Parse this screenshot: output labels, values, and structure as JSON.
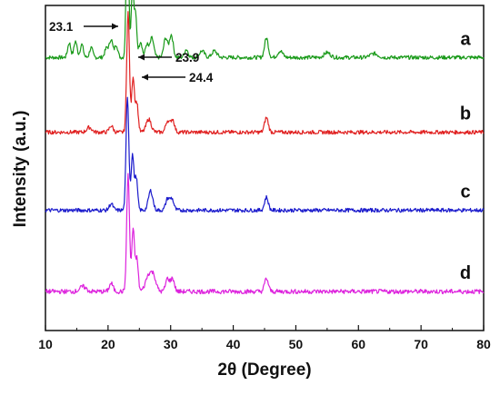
{
  "chart_data": {
    "type": "line",
    "xlabel": "2θ (Degree)",
    "ylabel": "Intensity (a.u.)",
    "xlim": [
      10,
      80
    ],
    "x_ticks": [
      10,
      20,
      30,
      40,
      50,
      60,
      70,
      80
    ],
    "y_tick_labels": "none",
    "grid": false,
    "legend": "none",
    "series": [
      {
        "name": "a",
        "color": "#1a9a1a",
        "baseline": 0.84,
        "noise": 0.006,
        "peaks": [
          {
            "x": 13.8,
            "h": 0.045,
            "w": 0.25
          },
          {
            "x": 14.8,
            "h": 0.05,
            "w": 0.25
          },
          {
            "x": 15.8,
            "h": 0.04,
            "w": 0.25
          },
          {
            "x": 17.3,
            "h": 0.03,
            "w": 0.25
          },
          {
            "x": 19.8,
            "h": 0.03,
            "w": 0.3
          },
          {
            "x": 20.5,
            "h": 0.055,
            "w": 0.25
          },
          {
            "x": 21.3,
            "h": 0.04,
            "w": 0.25
          },
          {
            "x": 23.1,
            "h": 0.46,
            "w": 0.2
          },
          {
            "x": 23.9,
            "h": 0.22,
            "w": 0.2
          },
          {
            "x": 24.4,
            "h": 0.13,
            "w": 0.2
          },
          {
            "x": 25.2,
            "h": 0.05,
            "w": 0.25
          },
          {
            "x": 26.2,
            "h": 0.04,
            "w": 0.25
          },
          {
            "x": 27.0,
            "h": 0.06,
            "w": 0.3
          },
          {
            "x": 29.2,
            "h": 0.06,
            "w": 0.3
          },
          {
            "x": 30.1,
            "h": 0.07,
            "w": 0.3
          },
          {
            "x": 32.5,
            "h": 0.025,
            "w": 0.3
          },
          {
            "x": 35.0,
            "h": 0.02,
            "w": 0.4
          },
          {
            "x": 37.0,
            "h": 0.02,
            "w": 0.4
          },
          {
            "x": 45.3,
            "h": 0.06,
            "w": 0.3
          },
          {
            "x": 47.5,
            "h": 0.02,
            "w": 0.4
          },
          {
            "x": 55.0,
            "h": 0.015,
            "w": 0.5
          },
          {
            "x": 62.5,
            "h": 0.012,
            "w": 0.6
          }
        ]
      },
      {
        "name": "b",
        "color": "#e02020",
        "baseline": 0.61,
        "noise": 0.006,
        "peaks": [
          {
            "x": 17.0,
            "h": 0.015,
            "w": 0.4
          },
          {
            "x": 20.5,
            "h": 0.02,
            "w": 0.3
          },
          {
            "x": 23.2,
            "h": 0.37,
            "w": 0.22
          },
          {
            "x": 24.0,
            "h": 0.17,
            "w": 0.22
          },
          {
            "x": 24.6,
            "h": 0.09,
            "w": 0.22
          },
          {
            "x": 26.5,
            "h": 0.04,
            "w": 0.4
          },
          {
            "x": 29.5,
            "h": 0.035,
            "w": 0.3
          },
          {
            "x": 30.3,
            "h": 0.04,
            "w": 0.3
          },
          {
            "x": 45.3,
            "h": 0.045,
            "w": 0.3
          }
        ]
      },
      {
        "name": "c",
        "color": "#1a1acc",
        "baseline": 0.37,
        "noise": 0.006,
        "peaks": [
          {
            "x": 20.5,
            "h": 0.02,
            "w": 0.3
          },
          {
            "x": 23.1,
            "h": 0.35,
            "w": 0.22
          },
          {
            "x": 23.9,
            "h": 0.17,
            "w": 0.22
          },
          {
            "x": 24.5,
            "h": 0.1,
            "w": 0.22
          },
          {
            "x": 26.8,
            "h": 0.06,
            "w": 0.35
          },
          {
            "x": 29.5,
            "h": 0.035,
            "w": 0.3
          },
          {
            "x": 30.2,
            "h": 0.035,
            "w": 0.3
          },
          {
            "x": 45.3,
            "h": 0.04,
            "w": 0.3
          }
        ]
      },
      {
        "name": "d",
        "color": "#dd22dd",
        "baseline": 0.12,
        "noise": 0.007,
        "peaks": [
          {
            "x": 16.0,
            "h": 0.015,
            "w": 0.5
          },
          {
            "x": 20.5,
            "h": 0.025,
            "w": 0.3
          },
          {
            "x": 23.2,
            "h": 0.36,
            "w": 0.22
          },
          {
            "x": 24.0,
            "h": 0.19,
            "w": 0.22
          },
          {
            "x": 24.6,
            "h": 0.1,
            "w": 0.22
          },
          {
            "x": 26.5,
            "h": 0.05,
            "w": 0.5
          },
          {
            "x": 27.3,
            "h": 0.04,
            "w": 0.4
          },
          {
            "x": 29.5,
            "h": 0.04,
            "w": 0.3
          },
          {
            "x": 30.3,
            "h": 0.04,
            "w": 0.3
          },
          {
            "x": 45.3,
            "h": 0.04,
            "w": 0.3
          }
        ]
      }
    ],
    "annotations": [
      {
        "text": "23.1",
        "x": 23.1,
        "arrow": "right"
      },
      {
        "text": "23.9",
        "x": 23.9,
        "arrow": "left"
      },
      {
        "text": "24.4",
        "x": 24.4,
        "arrow": "left"
      }
    ]
  }
}
